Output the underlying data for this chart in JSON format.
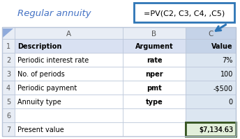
{
  "title": "Regular annuity",
  "formula": "=PV(C2, C3, C4, ,C5)",
  "col_headers": [
    "A",
    "B",
    "C"
  ],
  "row_numbers": [
    "1",
    "2",
    "3",
    "4",
    "5",
    "6",
    "7"
  ],
  "rows": [
    [
      "Description",
      "Argument",
      "Value"
    ],
    [
      "Periodic interest rate",
      "rate",
      "7%"
    ],
    [
      "No. of periods",
      "nper",
      "100"
    ],
    [
      "Periodic payment",
      "pmt",
      "-$500"
    ],
    [
      "Annuity type",
      "type",
      "0"
    ],
    [
      "",
      "",
      ""
    ],
    [
      "Present value",
      "",
      "$7,134.63"
    ]
  ],
  "title_color": "#4472c4",
  "formula_box_color": "#2e75b6",
  "arrow_color": "#2e75b6",
  "grid_color": "#b8c4d8",
  "header_bg": "#d9e1f2",
  "col_c_bg": "#dce6f1",
  "col_c_header_bg": "#c5d3e8",
  "present_value_bg": "#e2efda",
  "present_value_border": "#375623",
  "row_number_bg": "#e8edf5",
  "triangle_color": "#8eaadb"
}
